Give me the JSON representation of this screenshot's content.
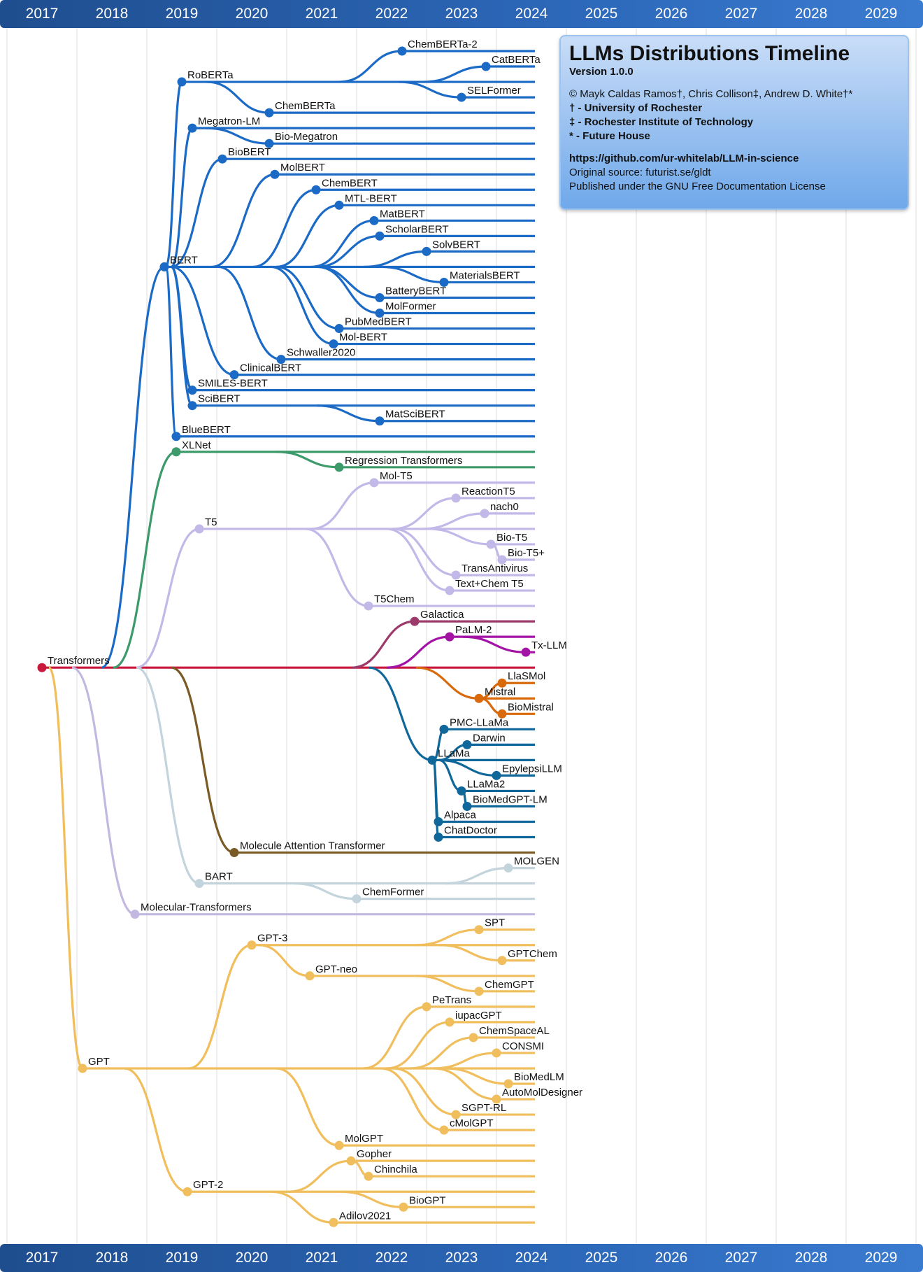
{
  "years": [
    "2017",
    "2018",
    "2019",
    "2020",
    "2021",
    "2022",
    "2023",
    "2024",
    "2025",
    "2026",
    "2027",
    "2028",
    "2029"
  ],
  "legend": {
    "title": "LLMs Distributions Timeline",
    "version": "Version 1.0.0",
    "authors": "© Mayk Caldas Ramos†, Chris Collison‡, Andrew D. White†*",
    "affiliation1": "† - University of Rochester",
    "affiliation2": "‡ - Rochester Institute of Technology",
    "affiliation3": "* - Future House",
    "github": "https://github.com/ur-whitelab/LLM-in-science",
    "source": "Original source: futurist.se/gldt",
    "license": "Published under the GNU Free Documentation License"
  },
  "chart_data": {
    "type": "timeline-tree",
    "x_axis": "year",
    "x_range": [
      2017,
      2029
    ],
    "colors": {
      "bert": "#1b6ac6",
      "xlnet": "#3c9a6b",
      "t5": "#c3b9e8",
      "galactica": "#9c3a6b",
      "palm": "#a313a5",
      "transformers": "#c8193c",
      "mistral": "#d96a0c",
      "llama": "#10679a",
      "mat": "#7a5a25",
      "bart": "#c3d4dc",
      "moltrans": "#c3b9e0",
      "gpt": "#f0be5c"
    },
    "nodes": [
      {
        "id": "transformers",
        "label": "Transformers",
        "year": 2017.0,
        "parent": null,
        "color": "transformers"
      },
      {
        "id": "bert",
        "label": "BERT",
        "year": 2018.75,
        "parent": "transformers",
        "color": "bert"
      },
      {
        "id": "roberta",
        "label": "RoBERTa",
        "year": 2019.0,
        "parent": "bert",
        "color": "bert"
      },
      {
        "id": "chemberta2",
        "label": "ChemBERTa-2",
        "year": 2022.15,
        "parent": "roberta",
        "color": "bert"
      },
      {
        "id": "catberta",
        "label": "CatBERTa",
        "year": 2023.35,
        "parent": "roberta",
        "color": "bert"
      },
      {
        "id": "selformer",
        "label": "SELFormer",
        "year": 2023.0,
        "parent": "roberta",
        "color": "bert"
      },
      {
        "id": "chemberta",
        "label": "ChemBERTa",
        "year": 2020.25,
        "parent": "roberta",
        "color": "bert"
      },
      {
        "id": "megatronlm",
        "label": "Megatron-LM",
        "year": 2019.15,
        "parent": "bert",
        "color": "bert"
      },
      {
        "id": "biomegatron",
        "label": "Bio-Megatron",
        "year": 2020.25,
        "parent": "megatronlm",
        "color": "bert"
      },
      {
        "id": "biobert",
        "label": "BioBERT",
        "year": 2019.58,
        "parent": "bert",
        "color": "bert"
      },
      {
        "id": "molbert",
        "label": "MolBERT",
        "year": 2020.33,
        "parent": "bert",
        "color": "bert"
      },
      {
        "id": "chembert",
        "label": "ChemBERT",
        "year": 2020.92,
        "parent": "bert",
        "color": "bert"
      },
      {
        "id": "mtlbert",
        "label": "MTL-BERT",
        "year": 2021.25,
        "parent": "bert",
        "color": "bert"
      },
      {
        "id": "matbert",
        "label": "MatBERT",
        "year": 2021.75,
        "parent": "bert",
        "color": "bert"
      },
      {
        "id": "scholarbert",
        "label": "ScholarBERT",
        "year": 2021.83,
        "parent": "bert",
        "color": "bert"
      },
      {
        "id": "solvbert",
        "label": "SolvBERT",
        "year": 2022.5,
        "parent": "bert",
        "color": "bert"
      },
      {
        "id": "materialsbert",
        "label": "MaterialsBERT",
        "year": 2022.75,
        "parent": "bert",
        "color": "bert"
      },
      {
        "id": "batterybert",
        "label": "BatteryBERT",
        "year": 2021.83,
        "parent": "bert",
        "color": "bert"
      },
      {
        "id": "molformer",
        "label": "MolFormer",
        "year": 2021.83,
        "parent": "bert",
        "color": "bert"
      },
      {
        "id": "pubmedbert",
        "label": "PubMedBERT",
        "year": 2021.25,
        "parent": "bert",
        "color": "bert"
      },
      {
        "id": "molbert2",
        "label": "Mol-BERT",
        "year": 2021.17,
        "parent": "bert",
        "color": "bert"
      },
      {
        "id": "schwaller2020",
        "label": "Schwaller2020",
        "year": 2020.42,
        "parent": "bert",
        "color": "bert"
      },
      {
        "id": "clinicalbert",
        "label": "ClinicalBERT",
        "year": 2019.75,
        "parent": "bert",
        "color": "bert"
      },
      {
        "id": "smilesbert",
        "label": "SMILES-BERT",
        "year": 2019.15,
        "parent": "bert",
        "color": "bert"
      },
      {
        "id": "scibert",
        "label": "SciBERT",
        "year": 2019.15,
        "parent": "bert",
        "color": "bert"
      },
      {
        "id": "matscibert",
        "label": "MatSciBERT",
        "year": 2021.83,
        "parent": "scibert",
        "color": "bert"
      },
      {
        "id": "bluebert",
        "label": "BlueBERT",
        "year": 2018.92,
        "parent": "bert",
        "color": "bert"
      },
      {
        "id": "xlnet",
        "label": "XLNet",
        "year": 2018.92,
        "parent": "transformers",
        "color": "xlnet"
      },
      {
        "id": "regtrans",
        "label": "Regression Transformers",
        "year": 2021.25,
        "parent": "xlnet",
        "color": "xlnet"
      },
      {
        "id": "t5",
        "label": "T5",
        "year": 2019.25,
        "parent": "transformers",
        "color": "t5"
      },
      {
        "id": "molt5",
        "label": "Mol-T5",
        "year": 2021.75,
        "parent": "t5",
        "color": "t5"
      },
      {
        "id": "reactiont5",
        "label": "ReactionT5",
        "year": 2022.92,
        "parent": "t5",
        "color": "t5"
      },
      {
        "id": "nach0",
        "label": "nach0",
        "year": 2023.33,
        "parent": "t5",
        "color": "t5"
      },
      {
        "id": "biot5",
        "label": "Bio-T5",
        "year": 2023.42,
        "parent": "t5",
        "color": "t5"
      },
      {
        "id": "biot5plus",
        "label": "Bio-T5+",
        "year": 2023.58,
        "parent": "biot5",
        "color": "t5"
      },
      {
        "id": "transantivirus",
        "label": "TransAntivirus",
        "year": 2022.92,
        "parent": "t5",
        "color": "t5"
      },
      {
        "id": "textchemt5",
        "label": "Text+Chem T5",
        "year": 2022.83,
        "parent": "t5",
        "color": "t5"
      },
      {
        "id": "t5chem",
        "label": "T5Chem",
        "year": 2021.67,
        "parent": "t5",
        "color": "t5"
      },
      {
        "id": "galactica",
        "label": "Galactica",
        "year": 2022.33,
        "parent": "transformers",
        "color": "galactica"
      },
      {
        "id": "palm2",
        "label": "PaLM-2",
        "year": 2022.83,
        "parent": "transformers",
        "color": "palm"
      },
      {
        "id": "txllm",
        "label": "Tx-LLM",
        "year": 2023.92,
        "parent": "palm2",
        "color": "palm"
      },
      {
        "id": "mistral",
        "label": "Mistral",
        "year": 2023.25,
        "parent": "transformers",
        "color": "mistral"
      },
      {
        "id": "llasmol",
        "label": "LlaSMol",
        "year": 2023.58,
        "parent": "mistral",
        "color": "mistral"
      },
      {
        "id": "biomistral",
        "label": "BioMistral",
        "year": 2023.58,
        "parent": "mistral",
        "color": "mistral"
      },
      {
        "id": "llama",
        "label": "LLaMa",
        "year": 2022.58,
        "parent": "transformers",
        "color": "llama"
      },
      {
        "id": "pmcllama",
        "label": "PMC-LLaMa",
        "year": 2022.75,
        "parent": "llama",
        "color": "llama"
      },
      {
        "id": "darwin",
        "label": "Darwin",
        "year": 2023.08,
        "parent": "llama",
        "color": "llama"
      },
      {
        "id": "epylepsillm",
        "label": "EpylepsiLLM",
        "year": 2023.5,
        "parent": "llama",
        "color": "llama"
      },
      {
        "id": "llama2",
        "label": "LLaMa2",
        "year": 2023.0,
        "parent": "llama",
        "color": "llama"
      },
      {
        "id": "biomedgptlm",
        "label": "BioMedGPT-LM",
        "year": 2023.08,
        "parent": "llama2",
        "color": "llama"
      },
      {
        "id": "alpaca",
        "label": "Alpaca",
        "year": 2022.67,
        "parent": "llama",
        "color": "llama"
      },
      {
        "id": "chatdoctor",
        "label": "ChatDoctor",
        "year": 2022.67,
        "parent": "llama",
        "color": "llama"
      },
      {
        "id": "mat",
        "label": "Molecule Attention Transformer",
        "year": 2019.75,
        "parent": "transformers",
        "color": "mat"
      },
      {
        "id": "bart",
        "label": "BART",
        "year": 2019.25,
        "parent": "transformers",
        "color": "bart"
      },
      {
        "id": "molgen",
        "label": "MOLGEN",
        "year": 2023.67,
        "parent": "bart",
        "color": "bart"
      },
      {
        "id": "chemformer",
        "label": "ChemFormer",
        "year": 2021.5,
        "parent": "bart",
        "color": "bart"
      },
      {
        "id": "moltransformers",
        "label": "Molecular-Transformers",
        "year": 2018.33,
        "parent": "transformers",
        "color": "moltrans"
      },
      {
        "id": "gpt",
        "label": "GPT",
        "year": 2017.58,
        "parent": "transformers",
        "color": "gpt"
      },
      {
        "id": "gpt3",
        "label": "GPT-3",
        "year": 2020.0,
        "parent": "gpt",
        "color": "gpt"
      },
      {
        "id": "spt",
        "label": "SPT",
        "year": 2023.25,
        "parent": "gpt3",
        "color": "gpt"
      },
      {
        "id": "gptchem",
        "label": "GPTChem",
        "year": 2023.58,
        "parent": "gpt3",
        "color": "gpt"
      },
      {
        "id": "gptneo",
        "label": "GPT-neo",
        "year": 2020.83,
        "parent": "gpt3",
        "color": "gpt"
      },
      {
        "id": "chemgpt",
        "label": "ChemGPT",
        "year": 2023.25,
        "parent": "gptneo",
        "color": "gpt"
      },
      {
        "id": "petrans",
        "label": "PeTrans",
        "year": 2022.5,
        "parent": "gpt",
        "color": "gpt"
      },
      {
        "id": "iupacgpt",
        "label": "iupacGPT",
        "year": 2022.83,
        "parent": "gpt",
        "color": "gpt"
      },
      {
        "id": "chemspaceal",
        "label": "ChemSpaceAL",
        "year": 2023.17,
        "parent": "gpt",
        "color": "gpt"
      },
      {
        "id": "consmi",
        "label": "CONSMI",
        "year": 2023.5,
        "parent": "gpt",
        "color": "gpt"
      },
      {
        "id": "biomedlm",
        "label": "BioMedLM",
        "year": 2023.67,
        "parent": "gpt",
        "color": "gpt"
      },
      {
        "id": "automoldesigner",
        "label": "AutoMolDesigner",
        "year": 2023.5,
        "parent": "gpt",
        "color": "gpt"
      },
      {
        "id": "sgptrl",
        "label": "SGPT-RL",
        "year": 2022.92,
        "parent": "gpt",
        "color": "gpt"
      },
      {
        "id": "cmolgpt",
        "label": "cMolGPT",
        "year": 2022.75,
        "parent": "gpt",
        "color": "gpt"
      },
      {
        "id": "molgpt",
        "label": "MolGPT",
        "year": 2021.25,
        "parent": "gpt",
        "color": "gpt"
      },
      {
        "id": "gpt2",
        "label": "GPT-2",
        "year": 2019.08,
        "parent": "gpt",
        "color": "gpt"
      },
      {
        "id": "gopher",
        "label": "Gopher",
        "year": 2021.42,
        "parent": "gpt2",
        "color": "gpt"
      },
      {
        "id": "chinchila",
        "label": "Chinchila",
        "year": 2021.67,
        "parent": "gopher",
        "color": "gpt"
      },
      {
        "id": "biogpt",
        "label": "BioGPT",
        "year": 2022.17,
        "parent": "gpt2",
        "color": "gpt"
      },
      {
        "id": "adilov2021",
        "label": "Adilov2021",
        "year": 2021.17,
        "parent": "gpt2",
        "color": "gpt"
      }
    ]
  }
}
